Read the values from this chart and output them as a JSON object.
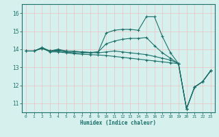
{
  "xlabel": "Humidex (Indice chaleur)",
  "bg_color": "#d6f0ee",
  "grid_color": "#c8e8e4",
  "line_color": "#1a7068",
  "xlim": [
    -0.5,
    23.5
  ],
  "ylim": [
    10.5,
    16.5
  ],
  "yticks": [
    11,
    12,
    13,
    14,
    15,
    16
  ],
  "xticks": [
    0,
    1,
    2,
    3,
    4,
    5,
    6,
    7,
    8,
    9,
    10,
    11,
    12,
    13,
    14,
    15,
    16,
    17,
    18,
    19,
    20,
    21,
    22,
    23
  ],
  "series1": {
    "points": [
      [
        0,
        13.9
      ],
      [
        1,
        13.9
      ],
      [
        2,
        14.1
      ],
      [
        3,
        13.9
      ],
      [
        4,
        13.9
      ],
      [
        5,
        13.85
      ],
      [
        6,
        13.8
      ],
      [
        7,
        13.8
      ],
      [
        8,
        13.8
      ],
      [
        9,
        13.85
      ],
      [
        10,
        14.9
      ],
      [
        11,
        15.05
      ],
      [
        12,
        15.1
      ],
      [
        13,
        15.1
      ],
      [
        14,
        15.05
      ],
      [
        15,
        15.8
      ],
      [
        16,
        15.8
      ],
      [
        17,
        14.7
      ],
      [
        18,
        13.8
      ],
      [
        19,
        13.2
      ],
      [
        20,
        10.7
      ],
      [
        21,
        11.9
      ],
      [
        22,
        12.2
      ],
      [
        23,
        12.8
      ]
    ]
  },
  "series2": {
    "points": [
      [
        0,
        13.9
      ],
      [
        1,
        13.9
      ],
      [
        2,
        14.05
      ],
      [
        3,
        13.9
      ],
      [
        4,
        14.0
      ],
      [
        5,
        13.9
      ],
      [
        6,
        13.88
      ],
      [
        7,
        13.85
      ],
      [
        8,
        13.82
      ],
      [
        9,
        13.85
      ],
      [
        10,
        14.3
      ],
      [
        11,
        14.45
      ],
      [
        12,
        14.55
      ],
      [
        13,
        14.6
      ],
      [
        14,
        14.6
      ],
      [
        15,
        14.65
      ],
      [
        16,
        14.2
      ],
      [
        17,
        13.8
      ],
      [
        18,
        13.5
      ],
      [
        19,
        13.2
      ],
      [
        20,
        10.7
      ],
      [
        21,
        11.9
      ],
      [
        22,
        12.2
      ],
      [
        23,
        12.8
      ]
    ]
  },
  "series3": {
    "points": [
      [
        0,
        13.9
      ],
      [
        1,
        13.9
      ],
      [
        2,
        14.05
      ],
      [
        3,
        13.9
      ],
      [
        4,
        13.95
      ],
      [
        5,
        13.9
      ],
      [
        6,
        13.88
      ],
      [
        7,
        13.85
      ],
      [
        8,
        13.82
      ],
      [
        9,
        13.8
      ],
      [
        10,
        13.85
      ],
      [
        11,
        13.9
      ],
      [
        12,
        13.85
      ],
      [
        13,
        13.8
      ],
      [
        14,
        13.75
      ],
      [
        15,
        13.7
      ],
      [
        16,
        13.6
      ],
      [
        17,
        13.5
      ],
      [
        18,
        13.4
      ],
      [
        19,
        13.2
      ],
      [
        20,
        10.7
      ],
      [
        21,
        11.9
      ],
      [
        22,
        12.2
      ],
      [
        23,
        12.8
      ]
    ]
  },
  "series4": {
    "points": [
      [
        0,
        13.9
      ],
      [
        1,
        13.9
      ],
      [
        2,
        14.05
      ],
      [
        3,
        13.85
      ],
      [
        4,
        13.85
      ],
      [
        5,
        13.8
      ],
      [
        6,
        13.75
      ],
      [
        7,
        13.72
      ],
      [
        8,
        13.7
      ],
      [
        9,
        13.68
      ],
      [
        10,
        13.65
      ],
      [
        11,
        13.6
      ],
      [
        12,
        13.55
      ],
      [
        13,
        13.5
      ],
      [
        14,
        13.45
      ],
      [
        15,
        13.4
      ],
      [
        16,
        13.35
      ],
      [
        17,
        13.3
      ],
      [
        18,
        13.25
      ],
      [
        19,
        13.2
      ],
      [
        20,
        10.7
      ],
      [
        21,
        11.9
      ],
      [
        22,
        12.2
      ],
      [
        23,
        12.8
      ]
    ]
  }
}
